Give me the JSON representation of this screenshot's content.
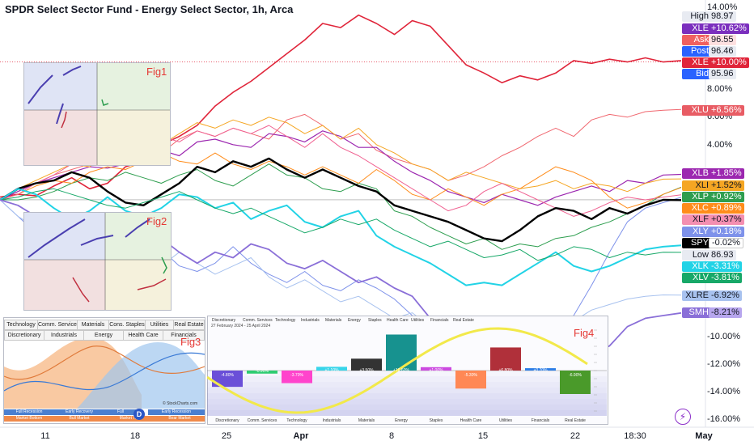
{
  "title": "SPDR Select Sector Fund - Energy Select Sector, 1h, Arca",
  "chart_data": {
    "type": "line",
    "ylim": [
      -16.5,
      14.5
    ],
    "y_ticks": [
      "14.00%",
      "8.00%",
      "6.00%",
      "4.00%",
      "-10.00%",
      "-12.00%",
      "-14.00%",
      "-16.00%"
    ],
    "y_tick_values": [
      14,
      8,
      6,
      4,
      -10,
      -12,
      -14,
      -16
    ],
    "x_ticks": [
      "11",
      "18",
      "25",
      "Apr",
      "8",
      "15",
      "22",
      "18:30",
      "May"
    ],
    "x_tick_values": [
      0.06,
      0.19,
      0.31,
      0.43,
      0.56,
      0.69,
      0.82,
      0.915,
      1.0
    ],
    "series": [
      {
        "name": "XLE",
        "color": "#e0253a",
        "width": 1.6,
        "values": [
          0.2,
          0.4,
          0.3,
          1.0,
          1.6,
          0.8,
          1.2,
          2.4,
          2.8,
          4.0,
          4.6,
          5.4,
          6.8,
          7.8,
          8.6,
          9.6,
          10.6,
          11.6,
          12.8,
          12.5,
          13.4,
          12.8,
          12.0,
          13.0,
          12.6,
          11.2,
          9.8,
          9.2,
          8.5,
          9.0,
          8.7,
          9.2,
          10.1,
          9.9,
          10.2,
          10.0,
          10.3,
          10.0,
          10.1
        ]
      },
      {
        "name": "XLU",
        "color": "#f0676f",
        "width": 1.0,
        "values": [
          0.0,
          0.6,
          1.2,
          1.8,
          2.2,
          2.6,
          2.8,
          3.2,
          3.6,
          3.4,
          4.4,
          5.0,
          4.6,
          5.2,
          4.8,
          4.4,
          5.8,
          6.2,
          5.4,
          4.4,
          4.8,
          3.6,
          3.0,
          2.6,
          2.2,
          1.4,
          1.8,
          2.4,
          3.2,
          3.8,
          4.6,
          5.2,
          4.6,
          5.8,
          6.2,
          6.0,
          6.4,
          6.5,
          6.56
        ]
      },
      {
        "name": "XLB",
        "color": "#9c27b0",
        "width": 1.2,
        "values": [
          0.0,
          0.6,
          1.2,
          1.6,
          2.0,
          2.4,
          2.3,
          2.6,
          3.0,
          3.6,
          3.2,
          4.2,
          4.4,
          4.0,
          3.8,
          4.8,
          4.6,
          4.2,
          5.0,
          4.6,
          3.8,
          3.8,
          2.8,
          2.0,
          1.4,
          0.6,
          0.2,
          -0.2,
          0.4,
          0.0,
          -0.4,
          0.2,
          0.6,
          1.0,
          0.6,
          1.4,
          1.2,
          1.8,
          1.85
        ]
      },
      {
        "name": "XLI",
        "color": "#f5a623",
        "width": 1.0,
        "values": [
          0.0,
          0.8,
          1.4,
          2.0,
          2.6,
          2.4,
          3.4,
          3.8,
          4.4,
          4.0,
          4.8,
          5.6,
          5.2,
          5.8,
          5.4,
          6.0,
          5.6,
          4.8,
          5.4,
          4.4,
          5.2,
          4.0,
          3.4,
          2.6,
          2.2,
          1.4,
          2.0,
          1.6,
          1.2,
          0.8,
          1.0,
          1.4,
          0.8,
          1.2,
          1.0,
          0.6,
          1.2,
          1.5,
          1.52
        ]
      },
      {
        "name": "XLP",
        "color": "#2e9e4f",
        "width": 1.0,
        "values": [
          0.0,
          0.0,
          0.2,
          0.6,
          1.2,
          1.6,
          1.4,
          2.0,
          1.6,
          1.2,
          1.8,
          2.2,
          1.4,
          1.0,
          1.8,
          2.6,
          1.8,
          1.6,
          0.8,
          0.6,
          1.2,
          0.8,
          -0.8,
          -1.2,
          -2.0,
          -2.6,
          -3.2,
          -2.8,
          -3.6,
          -3.2,
          -3.4,
          -2.8,
          -2.6,
          -2.0,
          -1.6,
          -1.0,
          -0.4,
          0.4,
          0.92
        ]
      },
      {
        "name": "XLC",
        "color": "#ff8c1a",
        "width": 1.0,
        "values": [
          0.0,
          0.4,
          1.0,
          1.4,
          1.2,
          2.0,
          2.4,
          2.2,
          2.8,
          3.4,
          2.8,
          2.6,
          3.4,
          2.6,
          2.2,
          2.8,
          2.4,
          1.8,
          2.4,
          1.8,
          1.2,
          2.2,
          1.4,
          0.4,
          0.0,
          0.8,
          0.2,
          -0.4,
          0.4,
          0.8,
          1.6,
          2.4,
          2.0,
          1.4,
          0.2,
          -0.6,
          -0.2,
          0.4,
          0.89
        ]
      },
      {
        "name": "XLF",
        "color": "#f06292",
        "width": 1.0,
        "values": [
          0.0,
          0.4,
          1.2,
          1.8,
          2.6,
          3.0,
          3.4,
          3.8,
          4.2,
          4.6,
          4.2,
          5.0,
          4.6,
          5.2,
          4.8,
          5.4,
          4.6,
          3.8,
          4.8,
          3.8,
          3.2,
          2.4,
          1.6,
          0.8,
          0.0,
          -0.8,
          -0.4,
          0.6,
          1.2,
          0.6,
          0.0,
          -0.6,
          -1.2,
          -0.8,
          -0.2,
          0.2,
          0.0,
          0.2,
          0.37
        ]
      },
      {
        "name": "XLY",
        "color": "#7e92ea",
        "width": 1.0,
        "values": [
          0.0,
          -1.2,
          -2.4,
          -2.0,
          -2.8,
          -3.6,
          -4.4,
          -3.2,
          -4.0,
          -3.6,
          -4.8,
          -5.2,
          -4.6,
          -3.4,
          -4.6,
          -5.4,
          -6.0,
          -5.2,
          -6.2,
          -6.6,
          -5.8,
          -6.4,
          -7.2,
          -8.4,
          -9.4,
          -10.2,
          -10.8,
          -11.8,
          -12.4,
          -11.6,
          -12.0,
          -10.8,
          -8.4,
          -6.2,
          -3.8,
          -1.6,
          -0.6,
          -0.2,
          0.18
        ]
      },
      {
        "name": "SPY",
        "color": "#000000",
        "width": 2.4,
        "values": [
          0.0,
          0.8,
          1.2,
          1.4,
          2.0,
          1.6,
          0.6,
          -0.2,
          -0.4,
          0.4,
          1.2,
          2.4,
          2.0,
          2.8,
          2.4,
          3.0,
          2.2,
          1.6,
          2.2,
          1.6,
          1.0,
          0.6,
          -0.4,
          -0.8,
          -1.2,
          -1.6,
          -2.2,
          -2.8,
          -3.0,
          -2.2,
          -1.2,
          -0.6,
          -0.8,
          -1.4,
          -0.6,
          -1.0,
          -0.4,
          0.0,
          -0.02
        ]
      },
      {
        "name": "XLK",
        "color": "#22d3e6",
        "width": 2.0,
        "values": [
          0.0,
          0.8,
          0.4,
          -0.6,
          -1.4,
          -0.8,
          0.2,
          -0.8,
          -1.2,
          -0.6,
          0.4,
          0.2,
          -0.6,
          -0.2,
          -1.4,
          -0.8,
          -0.4,
          -1.6,
          -2.0,
          -1.2,
          -0.8,
          -2.6,
          -3.4,
          -4.0,
          -4.6,
          -5.4,
          -6.2,
          -6.0,
          -6.2,
          -5.4,
          -4.6,
          -3.8,
          -4.8,
          -5.2,
          -4.8,
          -4.2,
          -3.6,
          -3.4,
          -3.31
        ]
      },
      {
        "name": "XLV",
        "color": "#17a868",
        "width": 1.0,
        "values": [
          0.0,
          0.2,
          0.6,
          0.8,
          0.4,
          0.0,
          -0.4,
          -0.6,
          -0.2,
          0.2,
          0.6,
          0.0,
          -0.6,
          -1.0,
          -0.6,
          -1.2,
          -1.8,
          -2.4,
          -2.0,
          -1.4,
          -1.8,
          -1.4,
          -2.2,
          -2.8,
          -3.4,
          -3.0,
          -3.6,
          -4.2,
          -4.0,
          -3.6,
          -4.4,
          -4.0,
          -3.4,
          -3.6,
          -4.2,
          -3.8,
          -4.0,
          -3.8,
          -3.81
        ]
      },
      {
        "name": "XLRE",
        "color": "#a8c2ef",
        "width": 1.0,
        "values": [
          0.0,
          -1.2,
          -2.0,
          -2.4,
          -3.0,
          -2.6,
          -3.8,
          -4.4,
          -4.0,
          -4.8,
          -3.8,
          -4.6,
          -5.4,
          -4.8,
          -4.2,
          -5.6,
          -6.4,
          -5.8,
          -6.6,
          -7.4,
          -7.0,
          -7.8,
          -8.6,
          -8.2,
          -9.2,
          -8.6,
          -9.0,
          -9.8,
          -9.4,
          -9.8,
          -9.6,
          -9.2,
          -8.8,
          -8.0,
          -7.6,
          -7.2,
          -7.0,
          -6.9,
          -6.92
        ]
      },
      {
        "name": "SMH",
        "color": "#8a6fd8",
        "width": 1.8,
        "values": [
          0.0,
          -0.4,
          -1.2,
          -2.4,
          -3.6,
          -3.0,
          -2.8,
          -2.2,
          -3.4,
          -2.8,
          -3.8,
          -4.6,
          -3.8,
          -4.2,
          -3.2,
          -3.6,
          -4.6,
          -5.0,
          -4.4,
          -5.2,
          -6.0,
          -5.6,
          -6.4,
          -7.0,
          -8.6,
          -9.4,
          -10.2,
          -11.8,
          -12.6,
          -12.2,
          -12.8,
          -12.4,
          -12.0,
          -11.2,
          -10.6,
          -9.2,
          -8.6,
          -8.4,
          -8.21
        ]
      }
    ]
  },
  "tags": {
    "high": {
      "name": "High",
      "value": "98.97"
    },
    "xle1": {
      "name": "XLE",
      "value": "+10.62%"
    },
    "ask": {
      "name": "Ask",
      "value": "96.55"
    },
    "post": {
      "name": "Post",
      "value": "96.46"
    },
    "xle2": {
      "name": "XLE",
      "value": "+10.00%"
    },
    "bid": {
      "name": "Bid",
      "value": "95.96"
    },
    "xlu": {
      "name": "XLU",
      "value": "+6.56%"
    },
    "xlb": {
      "name": "XLB",
      "value": "+1.85%"
    },
    "xli": {
      "name": "XLI",
      "value": "+1.52%"
    },
    "xlp": {
      "name": "XLP",
      "value": "+0.92%"
    },
    "xlc": {
      "name": "XLC",
      "value": "+0.89%"
    },
    "xlf": {
      "name": "XLF",
      "value": "+0.37%"
    },
    "xly": {
      "name": "XLY",
      "value": "+0.18%"
    },
    "spy": {
      "name": "SPY",
      "value": "-0.02%"
    },
    "low": {
      "name": "Low",
      "value": "86.93"
    },
    "xlk": {
      "name": "XLK",
      "value": "-3.31%"
    },
    "xlv": {
      "name": "XLV",
      "value": "-3.81%"
    },
    "xlre": {
      "name": "XLRE",
      "value": "-6.92%"
    },
    "smh": {
      "name": "SMH",
      "value": "-8.21%"
    }
  },
  "colors": {
    "xle": "#e0253a",
    "xlu": "#f0676f",
    "xlb": "#9c27b0",
    "xli": "#f5a623",
    "xlp": "#2e9e4f",
    "xlc": "#ff8c1a",
    "xlf": "#f06292",
    "xly": "#7e92ea",
    "spy": "#000000",
    "xlk": "#22d3e6",
    "xlv": "#17a868",
    "xlre": "#a8c2ef",
    "smh": "#8a6fd8",
    "high": "#e8ebf2",
    "ask": "#f06060",
    "post": "#2a62ff",
    "bid": "#2a62ff",
    "low": "#e8ebf2"
  },
  "figures": {
    "fig1": "Fig1",
    "fig2": "Fig2",
    "fig3": "Fig3",
    "fig4": "Fig4"
  },
  "fig3": {
    "tabs_row1": [
      "Technology",
      "Comm. Services",
      "Materials",
      "Cons. Staples",
      "Utilities",
      "Real Estate"
    ],
    "tabs_row2": [
      "Discretionary",
      "Industrials",
      "Energy",
      "Health Care",
      "Financials"
    ],
    "phase_row1": [
      "Full Recession",
      "Early Recovery",
      "Full",
      "Early Recession"
    ],
    "phase_row2": [
      "Market Bottom",
      "Bull Market",
      "Market Top",
      "Bear Market"
    ],
    "credit": "© StockCharts.com",
    "marker": "D"
  },
  "fig4": {
    "date_range": "27 February 2024 - 25 April 2024",
    "legend": [
      "Discretionary",
      "Comm. Services",
      "Technology",
      "Industrials",
      "Materials",
      "Energy",
      "Staples",
      "Health Care",
      "Utilities",
      "Financials",
      "Real Estate"
    ],
    "bars": [
      {
        "name": "Discretionary",
        "value": -4.8,
        "label": "-4.80%",
        "color": "#6a4fd8"
      },
      {
        "name": "Comm. Services",
        "value": -0.9,
        "label": "-0.90%",
        "color": "#2ecc71"
      },
      {
        "name": "Technology",
        "value": -3.7,
        "label": "-3.70%",
        "color": "#ff44cc"
      },
      {
        "name": "Industrials",
        "value": 1.1,
        "label": "+1.10%",
        "color": "#38d5ea"
      },
      {
        "name": "Materials",
        "value": 3.5,
        "label": "+3.50%",
        "color": "#333333"
      },
      {
        "name": "Energy",
        "value": 10.6,
        "label": "+10.60%",
        "color": "#17928f"
      },
      {
        "name": "Staples",
        "value": 1.0,
        "label": "+1.00%",
        "color": "#cc4ae0"
      },
      {
        "name": "Health Care",
        "value": -5.3,
        "label": "-5.30%",
        "color": "#ff8855"
      },
      {
        "name": "Utilities",
        "value": 6.8,
        "label": "+6.80%",
        "color": "#b0303a"
      },
      {
        "name": "Financials",
        "value": 0.7,
        "label": "+0.70%",
        "color": "#2e7ee6"
      },
      {
        "name": "Real Estate",
        "value": -6.9,
        "label": "-6.90%",
        "color": "#4a9a2a"
      }
    ]
  },
  "lightning_icon": "lightning-icon"
}
